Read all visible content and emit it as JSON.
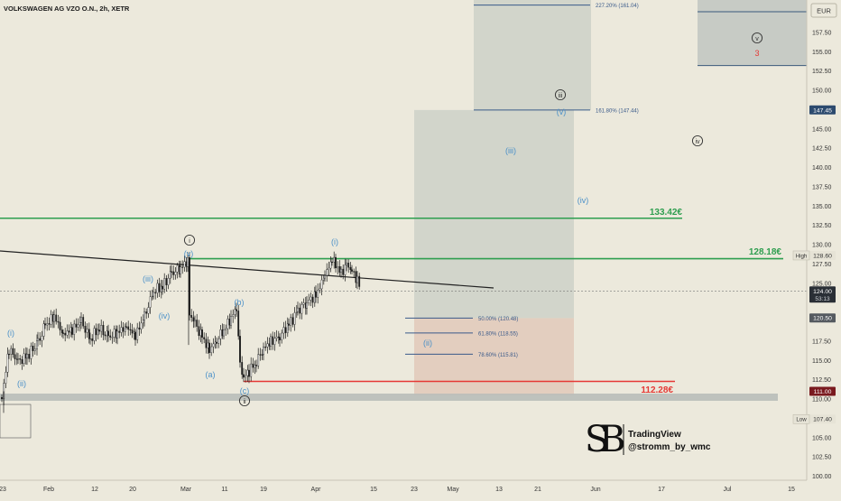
{
  "chart_data": {
    "type": "candlestick",
    "title": "VOLKSWAGEN AG VZO O.N., 2h, XETR",
    "currency": "EUR",
    "ylim": [
      100,
      160
    ],
    "y_ticks": [
      "157.50",
      "155.00",
      "152.50",
      "150.00",
      "145.00",
      "142.50",
      "140.00",
      "137.50",
      "135.00",
      "132.50",
      "130.00",
      "127.50",
      "125.00",
      "117.50",
      "115.00",
      "112.50",
      "110.00",
      "105.00",
      "102.50",
      "100.00"
    ],
    "x_ticks": [
      "23",
      "Feb",
      "12",
      "20",
      "Mar",
      "11",
      "19",
      "Apr",
      "15",
      "23",
      "May",
      "13",
      "21",
      "Jun",
      "17",
      "Jul",
      "15"
    ],
    "price_badges": [
      {
        "label": "147.45",
        "value": 147.45,
        "style": "navy"
      },
      {
        "label": "128.60",
        "value": 128.6,
        "style": "light",
        "tag": "High"
      },
      {
        "label": "124.00",
        "sub": "53:13",
        "value": 124.0,
        "style": "dark"
      },
      {
        "label": "120.50",
        "value": 120.5,
        "style": "grey"
      },
      {
        "label": "111.00",
        "value": 111.0,
        "style": "maroon"
      },
      {
        "label": "107.40",
        "value": 107.4,
        "style": "plain",
        "tag": "Low"
      }
    ],
    "levels": [
      {
        "label": "133.42€",
        "value": 133.42,
        "color": "#2e9e4f"
      },
      {
        "label": "128.18€",
        "value": 128.18,
        "color": "#2e9e4f"
      },
      {
        "label": "112.28€",
        "value": 112.28,
        "color": "#e53935"
      }
    ],
    "fib_levels": [
      {
        "label": "50.00% (120.48)",
        "value": 120.48
      },
      {
        "label": "61.80% (118.55)",
        "value": 118.55
      },
      {
        "label": "78.60% (115.81)",
        "value": 115.81
      },
      {
        "label": "161.80% (147.44)",
        "value": 147.44
      },
      {
        "label": "227.20% (161.04)",
        "value": 161.04
      }
    ],
    "wave_labels": [
      {
        "text": "(i)",
        "color": "#4a90c8"
      },
      {
        "text": "(ii)",
        "color": "#4a90c8"
      },
      {
        "text": "(iii)",
        "color": "#4a90c8"
      },
      {
        "text": "(iv)",
        "color": "#4a90c8"
      },
      {
        "text": "(v)",
        "color": "#4a90c8"
      },
      {
        "text": "(a)",
        "color": "#4a90c8"
      },
      {
        "text": "(b)",
        "color": "#4a90c8"
      },
      {
        "text": "(c)",
        "color": "#4a90c8"
      },
      {
        "text": "(i)",
        "color": "#4a90c8"
      },
      {
        "text": "(ii)",
        "color": "#4a90c8"
      },
      {
        "text": "(iii)",
        "color": "#4a90c8"
      },
      {
        "text": "(iv)",
        "color": "#4a90c8"
      },
      {
        "text": "(v)",
        "color": "#4a90c8"
      },
      {
        "text": "i",
        "color": "#333333",
        "circled": true
      },
      {
        "text": "ii",
        "color": "#333333",
        "circled": true
      },
      {
        "text": "iii",
        "color": "#333333",
        "circled": true
      },
      {
        "text": "iv",
        "color": "#333333",
        "circled": true
      },
      {
        "text": "v",
        "color": "#333333",
        "circled": true
      },
      {
        "text": "3",
        "color": "#e53935"
      }
    ],
    "watermark": {
      "name": "TradingView",
      "handle": "@stromm_by_wmc"
    }
  }
}
